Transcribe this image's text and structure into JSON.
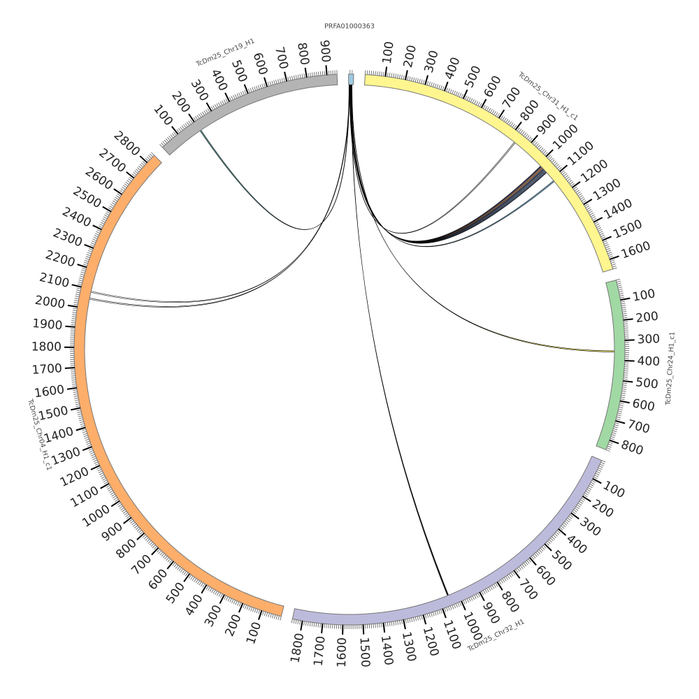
{
  "title": "PRFA01000363",
  "tick_interval_major": 100,
  "tick_interval_minor": 10,
  "segments": [
    {
      "id": "prfa",
      "name": "PRFA01000363",
      "length": 25,
      "color": "#9ecae1",
      "show_ticks": false
    },
    {
      "id": "chr31",
      "name": "TcDm25_Chr31_H1_c1",
      "length": 1650,
      "color": "#fff68f",
      "show_ticks": true
    },
    {
      "id": "chr24",
      "name": "TcDm25_Chr24_H1_c1",
      "length": 850,
      "color": "#a1d9a4",
      "show_ticks": true
    },
    {
      "id": "chr32",
      "name": "TcDm25_Chr32_H1",
      "length": 1850,
      "color": "#bdbbdc",
      "show_ticks": true
    },
    {
      "id": "chr04",
      "name": "TcDm25_Chr04_H1_c1",
      "length": 2850,
      "color": "#fdae6b",
      "show_ticks": true
    },
    {
      "id": "chr19",
      "name": "TcDm25_Chr19_H1",
      "length": 950,
      "color": "#b4b4b4",
      "show_ticks": true
    }
  ],
  "links": [
    {
      "from": 5,
      "to_seg": "chr31",
      "to": 833,
      "color": "#ffffff"
    },
    {
      "from": 8,
      "to_seg": "chr31",
      "to": 1015,
      "color": "#333355"
    },
    {
      "from": 9,
      "to_seg": "chr31",
      "to": 1025,
      "color": "#e6803a"
    },
    {
      "from": 10,
      "to_seg": "chr31",
      "to": 1035,
      "color": "#2b3a67"
    },
    {
      "from": 11,
      "to_seg": "chr31",
      "to": 1045,
      "color": "#4a6fa5"
    },
    {
      "from": 12,
      "to_seg": "chr31",
      "to": 1055,
      "color": "#2b3a67"
    },
    {
      "from": 13,
      "to_seg": "chr31",
      "to": 1115,
      "color": "#6baed6"
    },
    {
      "from": 16,
      "to_seg": "chr24",
      "to": 352,
      "color": "#fff35c"
    },
    {
      "from": 14,
      "to_seg": "chr32",
      "to": 1048,
      "color": "#000000"
    },
    {
      "from": 3,
      "to_seg": "chr04",
      "to": 2084,
      "color": "#ffffff"
    },
    {
      "from": 4,
      "to_seg": "chr04",
      "to": 2048,
      "color": "#ffffff"
    },
    {
      "from": 2,
      "to_seg": "chr19",
      "to": 199,
      "color": "#5aa6a6"
    }
  ]
}
